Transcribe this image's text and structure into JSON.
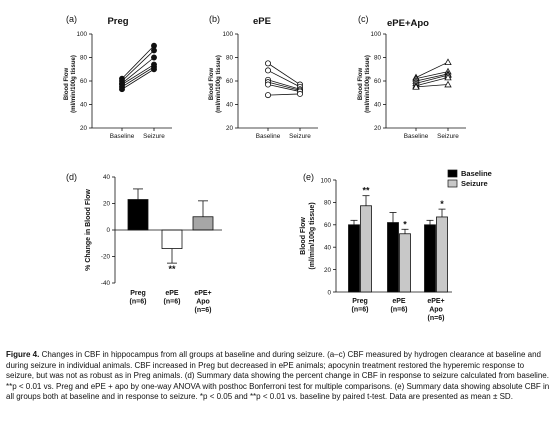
{
  "caption": {
    "lead": "Figure 4.",
    "text": "Changes in CBF in hippocampus from all groups at baseline and during seizure. (a–c) CBF measured by hydrogen clearance at baseline and during seizure in individual animals. CBF increased in Preg but decreased in ePE animals; apocynin treatment restored the hyperemic response to seizure, but was not as robust as in Preg animals. (d) Summary data showing the percent change in CBF in response to seizure calculated from baseline. **p < 0.01 vs. Preg and ePE + apo by one-way ANOVA with posthoc Bonferroni test for multiple comparisons. (e) Summary data showing absolute CBF in all groups both at baseline and in response to seizure. *p < 0.05 and **p < 0.01 vs. baseline by paired t-test. Data are presented as mean ± SD."
  },
  "chart_data": [
    {
      "type": "line",
      "panel": "(a)",
      "title": "Preg",
      "ylabel_lines": [
        "Blood Flow",
        "(ml/min/100g tissue)"
      ],
      "categories": [
        "Baseline",
        "Seizure"
      ],
      "ylim": [
        20,
        100
      ],
      "yticks": [
        20,
        40,
        60,
        80,
        100
      ],
      "marker": "filled-circle",
      "subjects": [
        [
          62,
          90
        ],
        [
          60,
          86
        ],
        [
          58,
          80
        ],
        [
          57,
          74
        ],
        [
          55,
          72
        ],
        [
          53,
          70
        ]
      ]
    },
    {
      "type": "line",
      "panel": "(b)",
      "title": "ePE",
      "ylabel_lines": [
        "Blood Flow",
        "(ml/min/100g tissue)"
      ],
      "categories": [
        "Baseline",
        "Seizure"
      ],
      "ylim": [
        20,
        100
      ],
      "yticks": [
        20,
        40,
        60,
        80,
        100
      ],
      "marker": "open-circle",
      "subjects": [
        [
          75,
          57
        ],
        [
          69,
          55
        ],
        [
          61,
          53
        ],
        [
          59,
          52
        ],
        [
          57,
          51
        ],
        [
          48,
          49
        ]
      ]
    },
    {
      "type": "line",
      "panel": "(c)",
      "title": "ePE+Apo",
      "ylabel_lines": [
        "Blood Flow",
        "(ml/min/100g tissue)"
      ],
      "categories": [
        "Baseline",
        "Seizure"
      ],
      "ylim": [
        20,
        100
      ],
      "yticks": [
        20,
        40,
        60,
        80,
        100
      ],
      "marker": "open-triangle",
      "subjects": [
        [
          63,
          76
        ],
        [
          62,
          68
        ],
        [
          60,
          66
        ],
        [
          58,
          65
        ],
        [
          56,
          63
        ],
        [
          55,
          57
        ]
      ]
    },
    {
      "type": "bar",
      "panel": "(d)",
      "ylabel": "% Change in Blood Flow",
      "ylim": [
        -40,
        40
      ],
      "yticks": [
        -40,
        -20,
        0,
        20,
        40
      ],
      "categories": [
        [
          "Preg",
          "(n=6)"
        ],
        [
          "ePE",
          "(n=6)"
        ],
        [
          "ePE+",
          "Apo",
          "(n=6)"
        ]
      ],
      "values": [
        23,
        -14,
        10
      ],
      "errors": [
        8,
        11,
        12
      ],
      "fills": [
        "#000000",
        "#ffffff",
        "#a6a6a6"
      ],
      "annotations": [
        "",
        "**",
        ""
      ]
    },
    {
      "type": "bar",
      "panel": "(e)",
      "ylabel_lines": [
        "Blood  Flow",
        "(ml/min/100g tissue)"
      ],
      "ylim": [
        0,
        100
      ],
      "yticks": [
        0,
        20,
        40,
        60,
        80,
        100
      ],
      "categories": [
        [
          "Preg",
          "(n=6)"
        ],
        [
          "ePE",
          "(n=6)"
        ],
        [
          "ePE+",
          "Apo",
          "(n=6)"
        ]
      ],
      "series": [
        {
          "name": "Baseline",
          "color": "#000000",
          "values": [
            60,
            62,
            60
          ],
          "errors": [
            4,
            9,
            4
          ],
          "annotations": [
            "",
            "",
            ""
          ]
        },
        {
          "name": "Seizure",
          "color": "#c8c8c8",
          "values": [
            77,
            52,
            67
          ],
          "errors": [
            9,
            4,
            7
          ],
          "annotations": [
            "**",
            "*",
            "*"
          ]
        }
      ],
      "legend": "top-right"
    }
  ]
}
